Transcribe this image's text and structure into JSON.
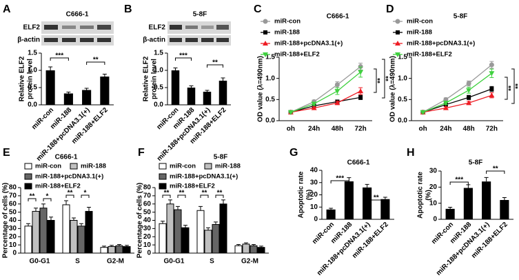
{
  "chart_data": [
    {
      "type": "bar",
      "panel": "A",
      "title": "C666-1",
      "blot_labels": [
        "ELF2",
        "β-actin"
      ],
      "ylabel": [
        "Relative ELF2",
        "protein level"
      ],
      "categories": [
        "miR-con",
        "miR-188",
        "miR-188+pcDNA3.1(+)",
        "miR-188+ELF2"
      ],
      "values": [
        1.0,
        0.33,
        0.43,
        0.82
      ],
      "errors": [
        0.1,
        0.04,
        0.05,
        0.07
      ],
      "color": "#000000",
      "ylim": [
        0,
        1.5
      ],
      "yticks": [
        {
          "value": 0,
          "label": "0.0"
        },
        0.5,
        {
          "value": 1,
          "label": "1.0"
        },
        1.5
      ],
      "annotations": [
        "***",
        "**"
      ]
    },
    {
      "type": "bar",
      "panel": "B",
      "title": "5-8F",
      "blot_labels": [
        "ELF2",
        "β-actin"
      ],
      "ylabel": [
        "Relative ELF2",
        "protein level"
      ],
      "categories": [
        "miR-con",
        "miR-188",
        "miR-188+pcDNA3.1(+)",
        "miR-188+ELF2"
      ],
      "values": [
        1.0,
        0.5,
        0.38,
        0.7
      ],
      "errors": [
        0.07,
        0.05,
        0.04,
        0.08
      ],
      "color": "#000000",
      "ylim": [
        0,
        1.5
      ],
      "yticks": [
        {
          "value": 0,
          "label": "0.0"
        },
        0.5,
        {
          "value": 1,
          "label": "1.0"
        },
        1.5
      ],
      "annotations": [
        "***",
        "**"
      ]
    },
    {
      "type": "line",
      "panel": "C",
      "title": "C666-1",
      "ylabel": [
        "OD value (λ=490nm)"
      ],
      "categories": [
        "oh",
        "24h",
        "48h",
        "72h"
      ],
      "series": [
        {
          "name": "miR-con",
          "color": "#999999",
          "values": [
            0.2,
            0.45,
            0.85,
            1.28
          ],
          "errors": [
            0.02,
            0.04,
            0.07,
            0.08
          ]
        },
        {
          "name": "miR-188",
          "color": "#000000",
          "values": [
            0.2,
            0.35,
            0.45,
            0.55
          ],
          "errors": [
            0.02,
            0.03,
            0.04,
            0.05
          ]
        },
        {
          "name": "miR-188+pcDNA3.1(+)",
          "color": "#ee1c24",
          "values": [
            0.2,
            0.3,
            0.42,
            0.7
          ],
          "errors": [
            0.02,
            0.03,
            0.04,
            0.08
          ]
        },
        {
          "name": "miR-188+ELF2",
          "color": "#3fd13f",
          "values": [
            0.2,
            0.4,
            0.7,
            1.15
          ],
          "errors": [
            0.02,
            0.04,
            0.08,
            0.12
          ]
        }
      ],
      "ylim": [
        0,
        1.5
      ],
      "yticks": [
        {
          "value": 0,
          "label": "0.0"
        },
        0.5,
        {
          "value": 1,
          "label": "1.0"
        },
        1.5
      ],
      "annotations": [
        "**",
        "**"
      ]
    },
    {
      "type": "line",
      "panel": "D",
      "title": "5-8F",
      "ylabel": [
        "OD value (λ=490nm)"
      ],
      "categories": [
        "oh",
        "24h",
        "48h",
        "72h"
      ],
      "series": [
        {
          "name": "miR-con",
          "color": "#999999",
          "values": [
            0.2,
            0.5,
            0.88,
            1.32
          ],
          "errors": [
            0.02,
            0.04,
            0.06,
            0.08
          ]
        },
        {
          "name": "miR-188",
          "color": "#000000",
          "values": [
            0.2,
            0.38,
            0.55,
            0.75
          ],
          "errors": [
            0.02,
            0.03,
            0.05,
            0.06
          ]
        },
        {
          "name": "miR-188+pcDNA3.1(+)",
          "color": "#ee1c24",
          "values": [
            0.2,
            0.3,
            0.42,
            0.6
          ],
          "errors": [
            0.02,
            0.03,
            0.04,
            0.06
          ]
        },
        {
          "name": "miR-188+ELF2",
          "color": "#3fd13f",
          "values": [
            0.2,
            0.42,
            0.72,
            1.12
          ],
          "errors": [
            0.02,
            0.04,
            0.07,
            0.1
          ]
        }
      ],
      "ylim": [
        0,
        1.5
      ],
      "yticks": [
        {
          "value": 0,
          "label": "0.0"
        },
        0.5,
        {
          "value": 1,
          "label": "1.0"
        },
        1.5
      ],
      "annotations": [
        "**",
        "**"
      ]
    },
    {
      "type": "grouped_bar",
      "panel": "E",
      "title": "C666-1",
      "ylabel": [
        "Percentage of cells (%)"
      ],
      "categories": [
        "G0-G1",
        "S",
        "G2-M"
      ],
      "series": [
        {
          "name": "miR-con",
          "color": "#ffffff",
          "values": [
            33,
            59,
            7
          ],
          "errors": [
            3,
            5,
            1.5
          ]
        },
        {
          "name": "miR-188",
          "color": "#c0c0c0",
          "values": [
            51,
            40,
            8
          ],
          "errors": [
            4,
            3,
            1.5
          ]
        },
        {
          "name": "miR-188+pcDNA3.1(+)",
          "color": "#666666",
          "values": [
            55,
            33,
            9
          ],
          "errors": [
            5,
            3,
            1.5
          ]
        },
        {
          "name": "miR-188+ELF2",
          "color": "#000000",
          "values": [
            40,
            51,
            8
          ],
          "errors": [
            4,
            5,
            1.5
          ]
        }
      ],
      "ylim": [
        0,
        80
      ],
      "yticks": [
        0,
        10,
        20,
        30,
        40,
        50,
        60,
        70,
        80
      ],
      "annotations": [
        "**",
        "*",
        "**",
        "*"
      ]
    },
    {
      "type": "grouped_bar",
      "panel": "F",
      "title": "5-8F",
      "ylabel": [
        "Percentage of cells (%)"
      ],
      "categories": [
        "G0-G1",
        "S",
        "G2-M"
      ],
      "series": [
        {
          "name": "miR-con",
          "color": "#ffffff",
          "values": [
            36,
            52,
            9
          ],
          "errors": [
            3,
            5,
            1.5
          ]
        },
        {
          "name": "miR-188",
          "color": "#c0c0c0",
          "values": [
            60,
            28,
            11
          ],
          "errors": [
            5,
            3,
            1.5
          ]
        },
        {
          "name": "miR-188+pcDNA3.1(+)",
          "color": "#666666",
          "values": [
            53,
            35,
            9
          ],
          "errors": [
            4,
            3,
            1.5
          ]
        },
        {
          "name": "miR-188+ELF2",
          "color": "#000000",
          "values": [
            31,
            60,
            7
          ],
          "errors": [
            3,
            5,
            1.5
          ]
        }
      ],
      "ylim": [
        0,
        80
      ],
      "yticks": [
        0,
        10,
        20,
        30,
        40,
        50,
        60,
        70,
        80
      ],
      "annotations": [
        "**",
        "**",
        "**",
        "**"
      ]
    },
    {
      "type": "bar",
      "panel": "G",
      "title": "C666-1",
      "ylabel": [
        "Apoptotic rate",
        "(%)"
      ],
      "categories": [
        "miR-con",
        "miR-188",
        "miR-188+pcDNA3.1(+)",
        "miR-188+ELF2"
      ],
      "values": [
        8,
        31,
        26,
        16.5
      ],
      "errors": [
        1,
        3,
        2.5,
        1.5
      ],
      "color": "#000000",
      "ylim": [
        0,
        40
      ],
      "yticks": [
        0,
        10,
        20,
        30,
        40
      ],
      "annotations": [
        "***",
        "**"
      ]
    },
    {
      "type": "bar",
      "panel": "H",
      "title": "5-8F",
      "ylabel": [
        "Apoptotic rate",
        "(%)"
      ],
      "categories": [
        "miR-con",
        "miR-188",
        "miR-188+pcDNA3.1(+)",
        "miR-188+ELF2"
      ],
      "values": [
        6.5,
        19.5,
        23.5,
        12
      ],
      "errors": [
        1,
        2,
        2.5,
        1.5
      ],
      "color": "#000000",
      "ylim": [
        0,
        30
      ],
      "yticks": [
        0,
        10,
        20,
        30
      ],
      "annotations": [
        "***",
        "**"
      ]
    }
  ]
}
